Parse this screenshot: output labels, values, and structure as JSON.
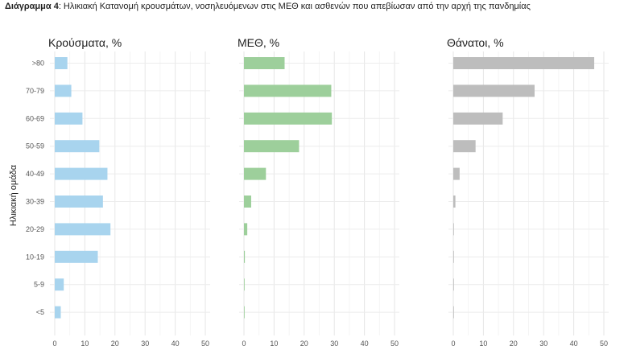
{
  "caption": {
    "bold": "Διάγραμμα 4",
    "text": ": Ηλικιακή Κατανομή κρουσμάτων, νοσηλευόμενων στις ΜΕΘ και ασθενών που απεβίωσαν από την αρχή της πανδημίας"
  },
  "chart_data": {
    "type": "bar",
    "orientation": "horizontal",
    "ylabel": "Ηλικιακή ομάδα",
    "categories": [
      ">80",
      "70-79",
      "60-69",
      "50-59",
      "40-49",
      "30-39",
      "20-29",
      "10-19",
      "5-9",
      "<5"
    ],
    "xlim": [
      0,
      50
    ],
    "xticks": [
      0,
      10,
      20,
      30,
      40,
      50
    ],
    "grid": true,
    "panels": [
      {
        "title": "Κρούσματα, %",
        "color": "#a8d4ee",
        "values": [
          4.2,
          5.5,
          9.2,
          14.8,
          17.5,
          16.0,
          18.5,
          14.3,
          3.0,
          2.0
        ]
      },
      {
        "title": "ΜΕΘ, %",
        "color": "#9dcf9b",
        "values": [
          13.5,
          29.0,
          29.2,
          18.3,
          7.3,
          2.4,
          1.1,
          0.3,
          0.2,
          0.2
        ]
      },
      {
        "title": "Θάνατοι, %",
        "color": "#bdbdbd",
        "values": [
          46.8,
          27.0,
          16.4,
          7.4,
          2.1,
          0.7,
          0.2,
          0.1,
          0.0,
          0.05
        ]
      }
    ]
  }
}
